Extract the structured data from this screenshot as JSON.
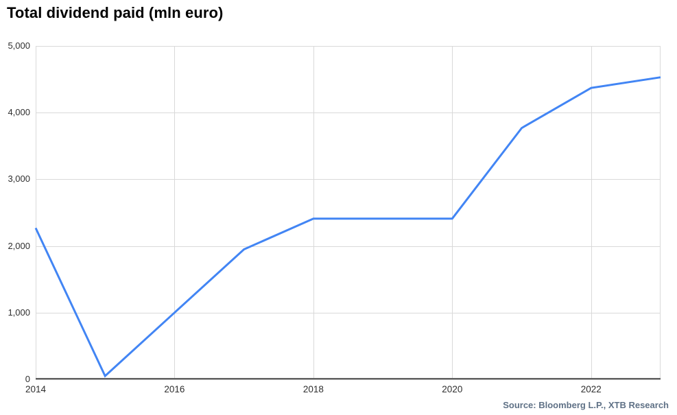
{
  "page": {
    "title": "Total dividend paid (mln euro)",
    "source": "Source: Bloomberg L.P., XTB Research"
  },
  "colors": {
    "line": "#4285f4",
    "grid": "#d9d9d9",
    "plot_border": "#d9d9d9",
    "axis": "#5f5f5f",
    "title_text": "#000000",
    "tick_text": "#2e2e2e",
    "source_text": "#5f7186",
    "background": "#ffffff"
  },
  "chart_data": {
    "type": "line",
    "title": "Total dividend paid (mln euro)",
    "xlabel": "",
    "ylabel": "",
    "x": [
      2014,
      2015,
      2016,
      2017,
      2018,
      2019,
      2020,
      2021,
      2022,
      2023
    ],
    "values": [
      2270,
      50,
      1000,
      1950,
      2410,
      2410,
      2410,
      3770,
      4370,
      4530
    ],
    "series_name": "Total dividend paid (mln euro)",
    "xlim": [
      2014,
      2023
    ],
    "ylim": [
      0,
      5000
    ],
    "yticks": [
      {
        "value": 0,
        "label": "0"
      },
      {
        "value": 1000,
        "label": "1,000"
      },
      {
        "value": 2000,
        "label": "2,000"
      },
      {
        "value": 3000,
        "label": "3,000"
      },
      {
        "value": 4000,
        "label": "4,000"
      },
      {
        "value": 5000,
        "label": "5,000"
      }
    ],
    "xticks": [
      {
        "value": 2014,
        "label": "2014"
      },
      {
        "value": 2016,
        "label": "2016"
      },
      {
        "value": 2018,
        "label": "2018"
      },
      {
        "value": 2020,
        "label": "2020"
      },
      {
        "value": 2022,
        "label": "2022"
      }
    ],
    "grid": true,
    "legend": "none",
    "source": "Source: Bloomberg L.P., XTB Research"
  }
}
